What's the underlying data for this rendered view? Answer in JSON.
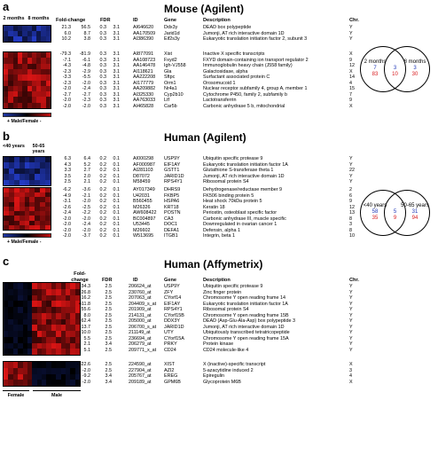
{
  "panel_a": {
    "letter": "a",
    "title": "Mouse (Agilent)",
    "group_labels": [
      "2 months",
      "8 months"
    ],
    "headers": [
      "Fold-change",
      "FDR",
      "ID",
      "Gene",
      "Description",
      "Chr."
    ],
    "scale_label": "+ Male/Female -",
    "rows": [
      [
        "21.3",
        "56.5",
        "0.3",
        "3.1",
        "AI646620",
        "Ddx3y",
        "DEAD box polypeptide",
        "Y"
      ],
      [
        "6.0",
        "8.7",
        "0.3",
        "3.1",
        "AA170509",
        "Jarid1d",
        "Jumonji, AT rich interactive domain 1D",
        "Y"
      ],
      [
        "10.2",
        "3.8",
        "0.3",
        "3.1",
        "AI386390",
        "Eif2s3y",
        "Eukaryotic translation initiation factor 2, subunit 3",
        "Y"
      ],
      [
        "-79.3",
        "-81.9",
        "0.3",
        "3.1",
        "AI877091",
        "Xist",
        "Inactive X specific transcripts",
        "X"
      ],
      [
        "-7.1",
        "-6.1",
        "0.3",
        "3.1",
        "AA108723",
        "Fxyd2",
        "FXYD domain-containing ion transport regulator 2",
        "9"
      ],
      [
        "-4.3",
        "-4.8",
        "0.3",
        "3.1",
        "AA146478",
        "Igh-VJ558",
        "Immunoglobulin heavy chain (J558 family)",
        "12"
      ],
      [
        "-2.3",
        "-2.9",
        "0.3",
        "3.1",
        "AI118621",
        "Gla",
        "Galactosidase, alpha",
        "X"
      ],
      [
        "-3.3",
        "-5.5",
        "0.3",
        "3.1",
        "AA222208",
        "Sftpc",
        "Surfactant associated protein C",
        "14"
      ],
      [
        "-2.3",
        "-2.0",
        "0.3",
        "3.1",
        "AI177779",
        "Orm1",
        "Orosomucoid 1",
        "4"
      ],
      [
        "-2.0",
        "-2.4",
        "0.3",
        "3.1",
        "AA209882",
        "Nr4a1",
        "Nuclear receptor subfamily 4, group A, member 1",
        "15"
      ],
      [
        "-2.7",
        "-2.7",
        "0.3",
        "3.1",
        "AI325330",
        "Cyp2b10",
        "Cytochrome P450, family 2, subfamily b",
        "7"
      ],
      [
        "-2.0",
        "-2.3",
        "0.3",
        "3.1",
        "AA763033",
        "Ltf",
        "Lactotransferrin",
        "9"
      ],
      [
        "-2.0",
        "-2.0",
        "0.3",
        "3.1",
        "AI465828",
        "Car5b",
        "Carbonic anhydrase 5 b, mitochondrial",
        "X"
      ]
    ],
    "venn": {
      "left_label": "2 months",
      "right_label": "8 months",
      "left": [
        "7",
        "83"
      ],
      "center": [
        "3",
        "10"
      ],
      "right": [
        "3",
        "30"
      ]
    }
  },
  "panel_b": {
    "letter": "b",
    "title": "Human (Agilent)",
    "group_labels": [
      "<40 years",
      "50-65 years"
    ],
    "scale_label": "+ Male/Female -",
    "rows": [
      [
        "6.3",
        "6.4",
        "0.2",
        "0.1",
        "AI000298",
        "USP9Y",
        "Ubiquitin specific protease 9",
        "Y"
      ],
      [
        "4.3",
        "5.2",
        "0.2",
        "0.1",
        "AF000987",
        "EIF1AY",
        "Eukaryotic translation initiation factor 1A",
        "Y"
      ],
      [
        "3.3",
        "2.7",
        "0.2",
        "0.1",
        "AI281103",
        "GSTT1",
        "Glutathione S-transferase theta 1",
        "22"
      ],
      [
        "3.5",
        "2.0",
        "0.2",
        "0.1",
        "D87072",
        "JARID1D",
        "Jumonji, AT rich interactive domain 1D",
        "Y"
      ],
      [
        "2.5",
        "2.1",
        "0.2",
        "0.1",
        "M58459",
        "RPS4Y1",
        "Ribosomal protein S4",
        "Y"
      ],
      [
        "-6.2",
        "-3.6",
        "0.2",
        "0.1",
        "AY017349",
        "DHRS9",
        "Dehydrogenase/reductase member 9",
        "2"
      ],
      [
        "-4.9",
        "-2.1",
        "0.2",
        "0.1",
        "U42031",
        "FKBP5",
        "FK506 binding protein 5",
        "6"
      ],
      [
        "-3.1",
        "-2.0",
        "0.2",
        "0.1",
        "B560455",
        "HSPA6",
        "Heat shock 70kDa protein 5",
        "9"
      ],
      [
        "-2.6",
        "-2.5",
        "0.2",
        "0.1",
        "M26326",
        "KRT18",
        "Keratin 18",
        "12"
      ],
      [
        "-2.4",
        "-2.2",
        "0.2",
        "0.1",
        "AW608422",
        "POSTN",
        "Periostin, osteoblast specific factor",
        "13"
      ],
      [
        "-2.0",
        "-2.0",
        "0.2",
        "0.1",
        "BC004897",
        "CA3",
        "Carbonic anhydrase III, muscle specific",
        "8"
      ],
      [
        "-2.0",
        "-2.4",
        "0.2",
        "0.1",
        "U53445",
        "DOC1",
        "Downregulated in ovarian cancer 1",
        "3"
      ],
      [
        "-2.0",
        "-2.0",
        "0.2",
        "0.1",
        "M26602",
        "DEFA1",
        "Defensin, alpha 1",
        "8"
      ],
      [
        "-2.0",
        "-3.7",
        "0.2",
        "0.1",
        "W513695",
        "ITGB1",
        "Integrin, beta 1",
        "10"
      ]
    ],
    "venn": {
      "left_label": "<40 years",
      "right_label": "50-65 years",
      "left": [
        "58",
        "35"
      ],
      "center": [
        "5",
        "9"
      ],
      "right": [
        "31",
        "94"
      ]
    }
  },
  "panel_c": {
    "letter": "c",
    "title": "Human (Affymetrix)",
    "headers": [
      "Fold-change",
      "FDR",
      "ID",
      "Gene",
      "Description",
      "Chr."
    ],
    "group_labels": [
      "Female",
      "Male"
    ],
    "rows": [
      [
        "34.3",
        "2.5",
        "206624_at",
        "USP9Y",
        "Ubiquitin specific protease 9",
        "Y"
      ],
      [
        "26.8",
        "2.5",
        "230760_at",
        "ZFY",
        "Zinc finger protein",
        "Y"
      ],
      [
        "16.2",
        "2.5",
        "207063_at",
        "CYorf14",
        "Chromosome Y open reading frame 14",
        "Y"
      ],
      [
        "411.8",
        "2.5",
        "204409_s_at",
        "EIF1AY",
        "Eukaryotic translation initiation factor 1A",
        "Y"
      ],
      [
        "55.6",
        "2.5",
        "201909_at",
        "RPS4Y1",
        "Ribosomal protein S4",
        "Y"
      ],
      [
        "8.0",
        "2.5",
        "214131_at",
        "CYorf15B",
        "Chromosome Y open reading frame 15B",
        "Y"
      ],
      [
        "62.4",
        "2.5",
        "205000_at",
        "DDX3Y",
        "DEAD (Asp-Glu-Ala-Asp) box polypeptide 3",
        "Y"
      ],
      [
        "13.7",
        "2.5",
        "206700_s_at",
        "JARID1D",
        "Jumonji, AT rich interactive domain 1D",
        "Y"
      ],
      [
        "10.0",
        "2.5",
        "211149_at",
        "UTY",
        "Ubiquitously transcribed tetratricopeptide",
        "Y"
      ],
      [
        "5.5",
        "2.5",
        "236694_at",
        "CYorf15A",
        "Chromosome Y open reading frame 15A",
        "Y"
      ],
      [
        "2.1",
        "3.4",
        "206279_at",
        "PRKY",
        "Protein kinase",
        "Y"
      ],
      [
        "5.1",
        "2.5",
        "209771_x_at",
        "CD24",
        "CD24 molecule-like 4",
        "Y"
      ],
      [
        "-322.6",
        "2.5",
        "224590_at",
        "XIST",
        "X (inactive)-specific transcript",
        "X"
      ],
      [
        "-2.0",
        "2.5",
        "227904_at",
        "AZI2",
        "5-azacytidine induced 2",
        "3"
      ],
      [
        "-9.2",
        "3.4",
        "205767_at",
        "EREG",
        "Epiregulin",
        "4"
      ],
      [
        "-2.0",
        "3.4",
        "209189_at",
        "GPM6B",
        "Glycoprotein M6B",
        "X"
      ]
    ]
  },
  "colors": {
    "male_blue": "#1f37b8",
    "female_red": "#d8191c"
  }
}
